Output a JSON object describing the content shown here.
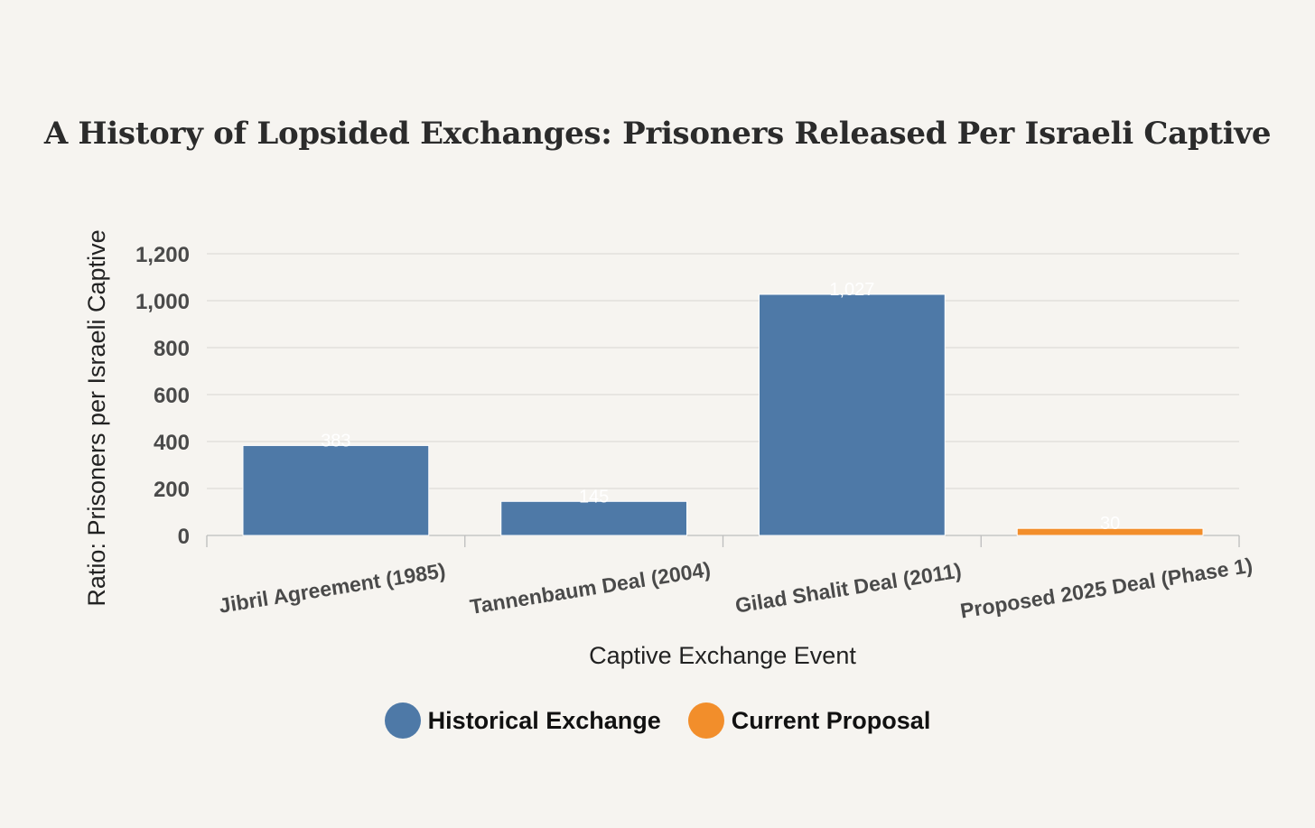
{
  "chart_data": {
    "type": "bar",
    "title": "A History of Lopsided Exchanges: Prisoners Released Per Israeli Captive",
    "xlabel": "Captive Exchange Event",
    "ylabel": "Ratio: Prisoners per Israeli Captive",
    "ylim": [
      0,
      1200
    ],
    "yticks": [
      0,
      200,
      400,
      600,
      800,
      1000,
      1200
    ],
    "ytick_labels": [
      "0",
      "200",
      "400",
      "600",
      "800",
      "1,000",
      "1,200"
    ],
    "grid": true,
    "categories": [
      "Jibril Agreement (1985)",
      "Tannenbaum Deal (2004)",
      "Gilad Shalit Deal (2011)",
      "Proposed 2025 Deal (Phase 1)"
    ],
    "values": [
      383,
      145,
      1027,
      30
    ],
    "value_labels": [
      "383",
      "145",
      "1,027",
      "30"
    ],
    "groups": [
      "Historical Exchange",
      "Historical Exchange",
      "Historical Exchange",
      "Current Proposal"
    ],
    "legend": [
      {
        "label": "Historical Exchange",
        "color": "#4e79a7"
      },
      {
        "label": "Current Proposal",
        "color": "#f28e2b"
      }
    ],
    "legend_position": "bottom"
  }
}
